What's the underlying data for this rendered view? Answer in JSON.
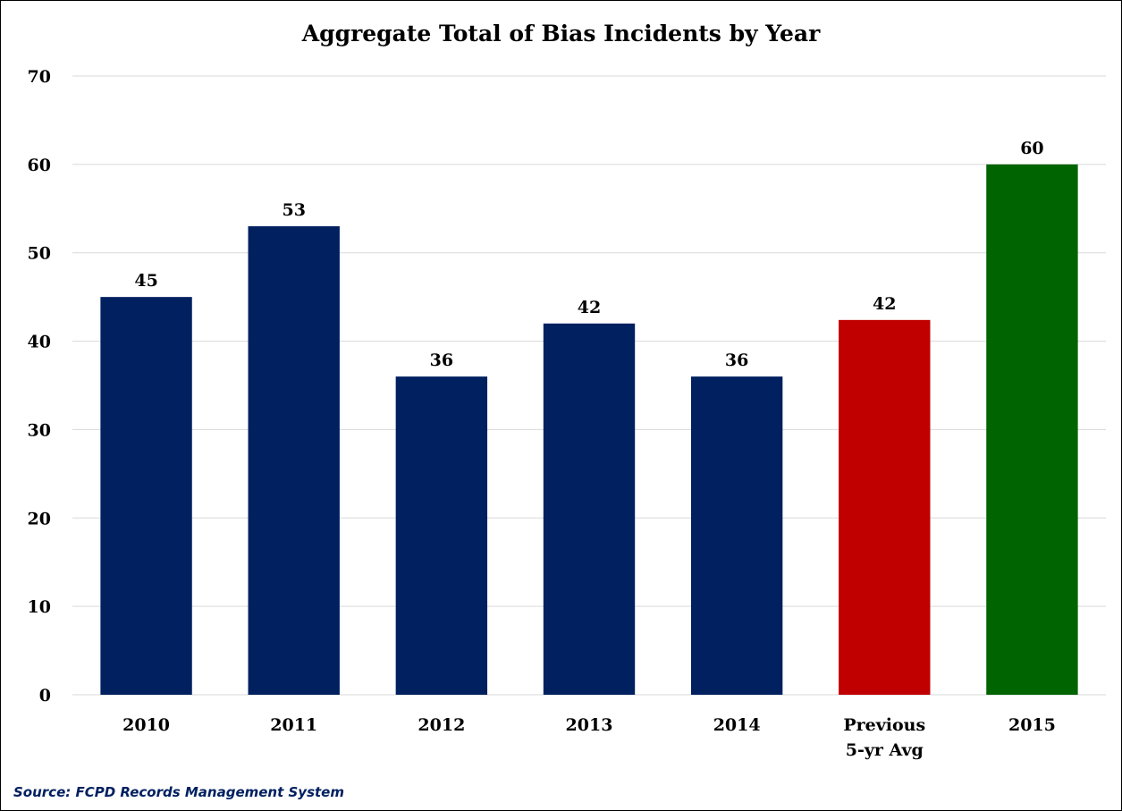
{
  "chart_data": {
    "type": "bar",
    "title": "Aggregate Total of Bias Incidents by Year",
    "categories": [
      "2010",
      "2011",
      "2012",
      "2013",
      "2014",
      "Previous 5-yr Avg",
      "2015"
    ],
    "category_lines": [
      [
        "2010"
      ],
      [
        "2011"
      ],
      [
        "2012"
      ],
      [
        "2013"
      ],
      [
        "2014"
      ],
      [
        "Previous",
        "5-yr Avg"
      ],
      [
        "2015"
      ]
    ],
    "values": [
      45,
      53,
      36,
      42,
      36,
      42.4,
      60
    ],
    "value_labels": [
      "45",
      "53",
      "36",
      "42",
      "36",
      "42",
      "60"
    ],
    "colors": [
      "#002060",
      "#002060",
      "#002060",
      "#002060",
      "#002060",
      "#C00000",
      "#006400"
    ],
    "ylim": [
      0,
      70
    ],
    "yticks": [
      0,
      10,
      20,
      30,
      40,
      50,
      60,
      70
    ],
    "xlabel": "",
    "ylabel": "",
    "grid": true,
    "gridline_color": "#D9D9D9",
    "legend": "none"
  },
  "source_note": "Source: FCPD Records Management System"
}
